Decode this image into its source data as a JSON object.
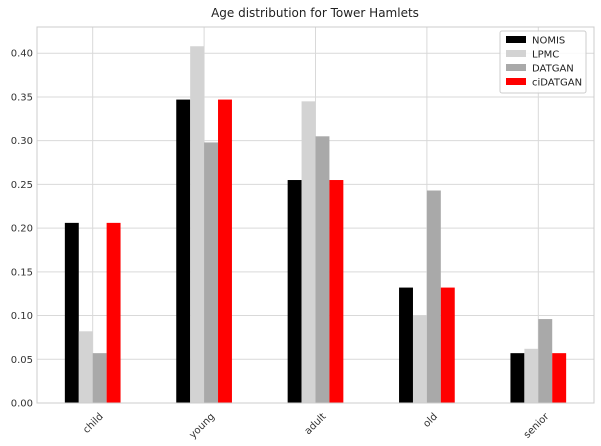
{
  "chart_data": {
    "type": "bar",
    "title": "Age distribution for Tower Hamlets",
    "xlabel": "",
    "ylabel": "",
    "categories": [
      "child",
      "young",
      "adult",
      "old",
      "senior"
    ],
    "series": [
      {
        "name": "NOMIS",
        "color": "#000000",
        "values": [
          0.206,
          0.347,
          0.255,
          0.132,
          0.057
        ]
      },
      {
        "name": "LPMC",
        "color": "#d3d3d3",
        "values": [
          0.082,
          0.408,
          0.345,
          0.1,
          0.062
        ]
      },
      {
        "name": "DATGAN",
        "color": "#a9a9a9",
        "values": [
          0.057,
          0.298,
          0.305,
          0.243,
          0.096
        ]
      },
      {
        "name": "ciDATGAN",
        "color": "#ff0000",
        "values": [
          0.206,
          0.347,
          0.255,
          0.132,
          0.057
        ]
      }
    ],
    "ylim": [
      0,
      0.43
    ],
    "yticks": [
      "0.00",
      "0.05",
      "0.10",
      "0.15",
      "0.20",
      "0.25",
      "0.30",
      "0.35",
      "0.40"
    ],
    "grid": true,
    "legend": "top-right"
  }
}
